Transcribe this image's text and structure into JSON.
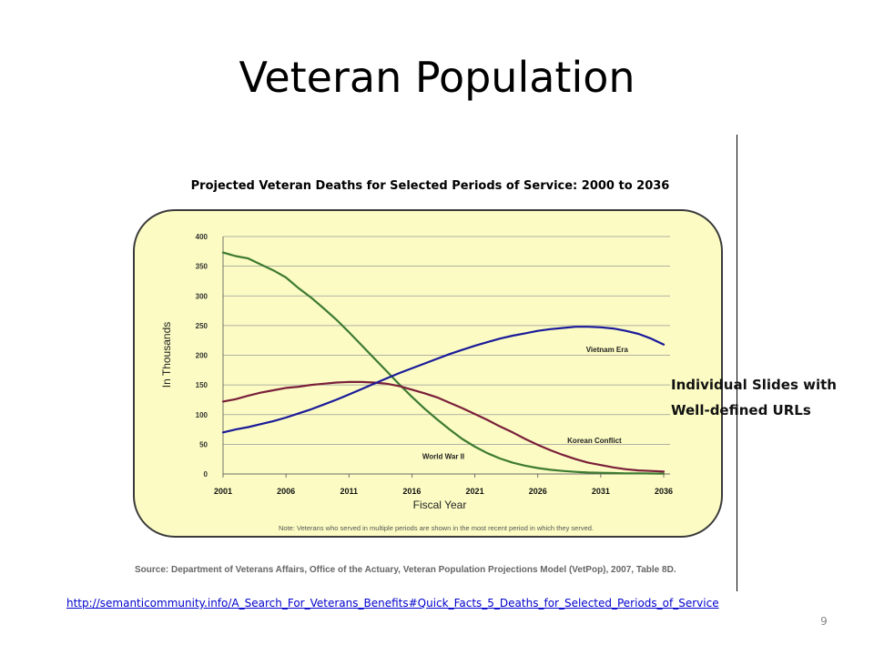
{
  "slide": {
    "title": "Veteran Population",
    "side_note_line1": "Individual Slides with",
    "side_note_line2": "Well-defined URLs",
    "source": "Source: Department of Veterans Affairs, Office of the Actuary, Veteran Population Projections Model (VetPop), 2007, Table 8D.",
    "url": "http://semanticommunity.info/A_Search_For_Veterans_Benefits#Quick_Facts_5_Deaths_for_Selected_Periods_of_Service",
    "page_number": "9"
  },
  "colors": {
    "panel_fill": "#fbfbc3",
    "world_war_ii": "#3d7a32",
    "korean_conflict": "#7a1f3a",
    "vietnam_era": "#1a1a9a",
    "link": "#0000cc"
  },
  "chart_data": {
    "type": "line",
    "title": "Projected Veteran Deaths for Selected Periods of Service: 2000 to 2036",
    "xlabel": "Fiscal Year",
    "ylabel": "In Thousands",
    "xlim": [
      2001,
      2036
    ],
    "ylim": [
      0,
      400
    ],
    "xticks": [
      2001,
      2006,
      2011,
      2016,
      2021,
      2026,
      2031,
      2036
    ],
    "yticks": [
      0,
      50,
      100,
      150,
      200,
      250,
      300,
      350,
      400
    ],
    "grid": true,
    "note": "Note: Veterans who served in multiple periods are shown in the most recent period in which they served.",
    "series": [
      {
        "name": "World War II",
        "color": "#3d7a32",
        "x": [
          2001,
          2002,
          2003,
          2004,
          2005,
          2006,
          2007,
          2008,
          2009,
          2010,
          2011,
          2012,
          2013,
          2014,
          2015,
          2016,
          2017,
          2018,
          2019,
          2020,
          2021,
          2022,
          2023,
          2024,
          2025,
          2026,
          2027,
          2028,
          2029,
          2030,
          2031,
          2032,
          2033,
          2034,
          2035,
          2036
        ],
        "y": [
          373,
          367,
          363,
          353,
          343,
          331,
          313,
          297,
          279,
          260,
          239,
          217,
          195,
          173,
          151,
          130,
          110,
          92,
          75,
          59,
          46,
          35,
          26,
          19,
          14,
          10,
          7,
          5,
          3.5,
          2.5,
          2,
          1.5,
          1,
          1,
          0.8,
          0.5
        ]
      },
      {
        "name": "Korean Conflict",
        "color": "#7a1f3a",
        "x": [
          2001,
          2002,
          2003,
          2004,
          2005,
          2006,
          2007,
          2008,
          2009,
          2010,
          2011,
          2012,
          2013,
          2014,
          2015,
          2016,
          2017,
          2018,
          2019,
          2020,
          2021,
          2022,
          2023,
          2024,
          2025,
          2026,
          2027,
          2028,
          2029,
          2030,
          2031,
          2032,
          2033,
          2034,
          2035,
          2036
        ],
        "y": [
          122,
          126,
          132,
          137,
          141,
          145,
          147,
          150,
          152,
          154,
          155,
          155,
          154,
          152,
          148,
          142,
          136,
          129,
          120,
          111,
          101,
          91,
          80,
          70,
          59,
          49,
          40,
          32,
          25,
          19,
          15,
          11,
          8,
          6,
          5,
          4
        ]
      },
      {
        "name": "Vietnam Era",
        "color": "#1a1a9a",
        "x": [
          2001,
          2002,
          2003,
          2004,
          2005,
          2006,
          2007,
          2008,
          2009,
          2010,
          2011,
          2012,
          2013,
          2014,
          2015,
          2016,
          2017,
          2018,
          2019,
          2020,
          2021,
          2022,
          2023,
          2024,
          2025,
          2026,
          2027,
          2028,
          2029,
          2030,
          2031,
          2032,
          2033,
          2034,
          2035,
          2036
        ],
        "y": [
          70,
          75,
          79,
          84,
          89,
          95,
          102,
          109,
          117,
          125,
          134,
          143,
          152,
          161,
          170,
          178,
          186,
          194,
          202,
          209,
          216,
          222,
          228,
          233,
          237,
          241,
          244,
          246,
          248,
          248,
          247,
          245,
          241,
          236,
          228,
          218
        ]
      }
    ],
    "labels": [
      {
        "series": "Vietnam Era",
        "text": "Vietnam Era",
        "x": 2031.5,
        "y": 205
      },
      {
        "series": "Korean Conflict",
        "text": "Korean Conflict",
        "x": 2030.5,
        "y": 52
      },
      {
        "series": "World War II",
        "text": "World War II",
        "x": 2018.5,
        "y": 25
      }
    ]
  }
}
